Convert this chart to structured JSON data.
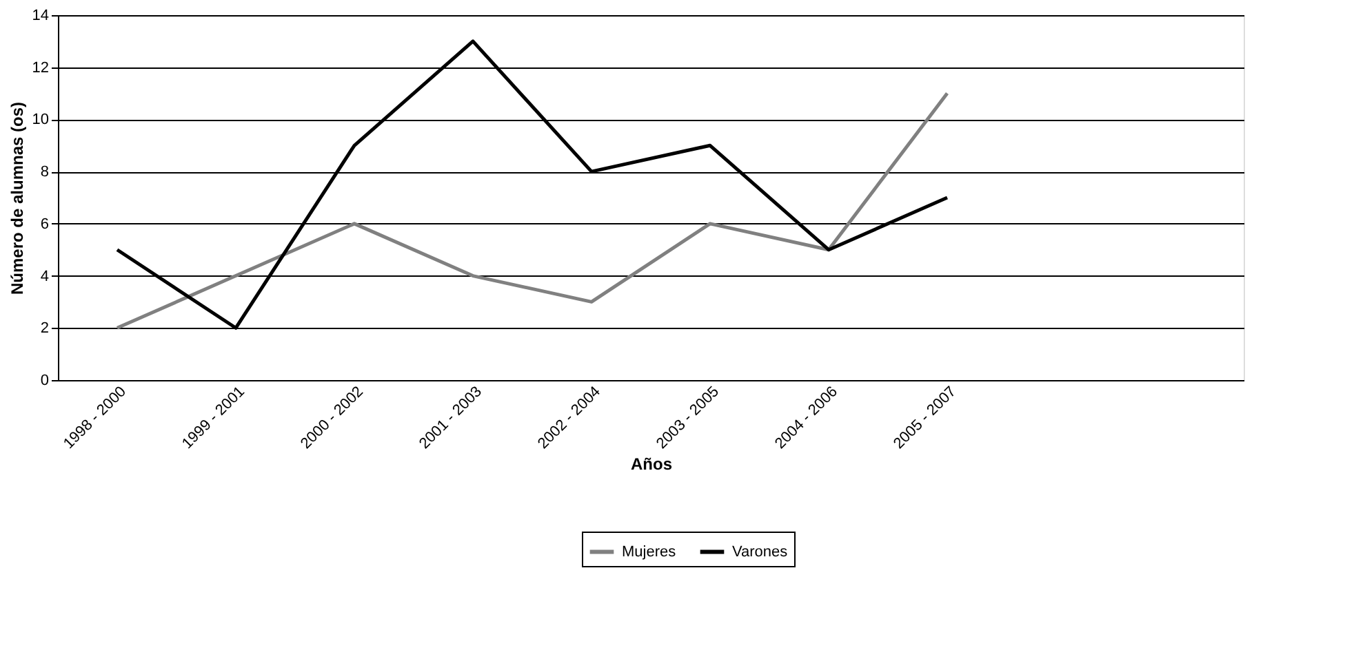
{
  "chart_data": {
    "type": "line",
    "xlabel": "Años",
    "ylabel": "Número de alumnas (os)",
    "categories": [
      "1998 - 2000",
      "1999 - 2001",
      "2000 - 2002",
      "2001 - 2003",
      "2002 - 2004",
      "2003 - 2005",
      "2004 - 2006",
      "2005 - 2007",
      null,
      null
    ],
    "series": [
      {
        "name": "Mujeres",
        "color": "#808080",
        "values": [
          2,
          4,
          6,
          4,
          3,
          6,
          5,
          11,
          null,
          null
        ]
      },
      {
        "name": "Varones",
        "color": "#000000",
        "values": [
          5,
          2,
          9,
          13,
          8,
          9,
          5,
          7,
          null,
          null
        ]
      }
    ],
    "ylim": [
      0,
      14
    ],
    "yticks": [
      0,
      2,
      4,
      6,
      8,
      10,
      12,
      14
    ],
    "grid": "y",
    "legend": "bottom",
    "line_style": "solid",
    "marker": "none"
  }
}
